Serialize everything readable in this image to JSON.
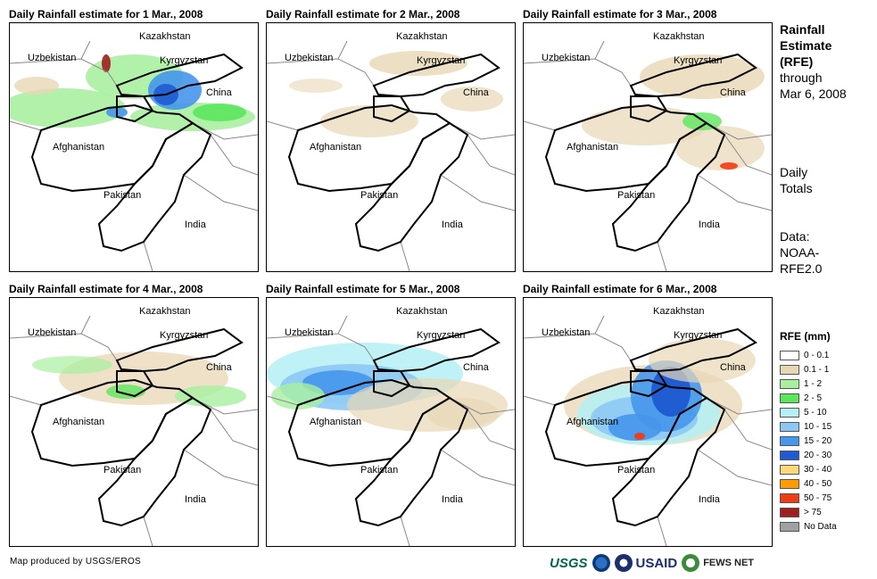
{
  "panels": [
    {
      "title": "Daily Rainfall estimate for 1 Mar., 2008",
      "label_afghanistan": "Afghanistan"
    },
    {
      "title": "Daily Rainfall estimate for 2 Mar., 2008",
      "label_afghanistan": "Afghanistan"
    },
    {
      "title": "Daily Rainfall estimate for 3 Mar., 2008",
      "label_afghanistan": "Afghanistan"
    },
    {
      "title": "Daily Rainfall estimate for 4 Mar., 2008",
      "label_afghanistan": "Afghanistan"
    },
    {
      "title": "Daily Rainfall estimate for 5 Mar., 2008",
      "label_afghanistan": "Afghanistan"
    },
    {
      "title": "Daily Rainfall estimate for 6 Mar., 2008",
      "label_afghanistan": "Afghanistan"
    }
  ],
  "map_labels": {
    "kazakhstan": "Kazakhstan",
    "uzbekistan": "Uzbekistan",
    "kyrgyzstan": "Kyrgyzstan",
    "china": "China",
    "pakistan": "Pakistan",
    "india": "India"
  },
  "sidebar": {
    "title_lines": [
      "Rainfall",
      "Estimate",
      "(RFE)"
    ],
    "through": "through",
    "date": "Mar 6, 2008",
    "totals_lines": [
      "Daily",
      "Totals"
    ],
    "data_lines": [
      "Data:",
      "NOAA-",
      "RFE2.0"
    ]
  },
  "legend": {
    "title": "RFE (mm)",
    "items": [
      {
        "label": "0 - 0.1",
        "color": "#ffffff"
      },
      {
        "label": "0.1 - 1",
        "color": "#e8d7b5"
      },
      {
        "label": "1 - 2",
        "color": "#a8f0a0"
      },
      {
        "label": "2 - 5",
        "color": "#5ce65c"
      },
      {
        "label": "5 - 10",
        "color": "#b4f0f5"
      },
      {
        "label": "10 - 15",
        "color": "#8cc8f5"
      },
      {
        "label": "15 - 20",
        "color": "#4696eb"
      },
      {
        "label": "20 - 30",
        "color": "#1e5ad2"
      },
      {
        "label": "30 - 40",
        "color": "#ffd978"
      },
      {
        "label": "40 - 50",
        "color": "#ff9c00"
      },
      {
        "label": "50 - 75",
        "color": "#f03c14"
      },
      {
        "label": "> 75",
        "color": "#a01e1e"
      },
      {
        "label": "No Data",
        "color": "#a0a0a0"
      }
    ]
  },
  "footer": {
    "credit": "Map produced by USGS/EROS"
  },
  "logos": {
    "usgs": "USGS",
    "usaid": "USAID",
    "fews": "FEWS NET"
  }
}
